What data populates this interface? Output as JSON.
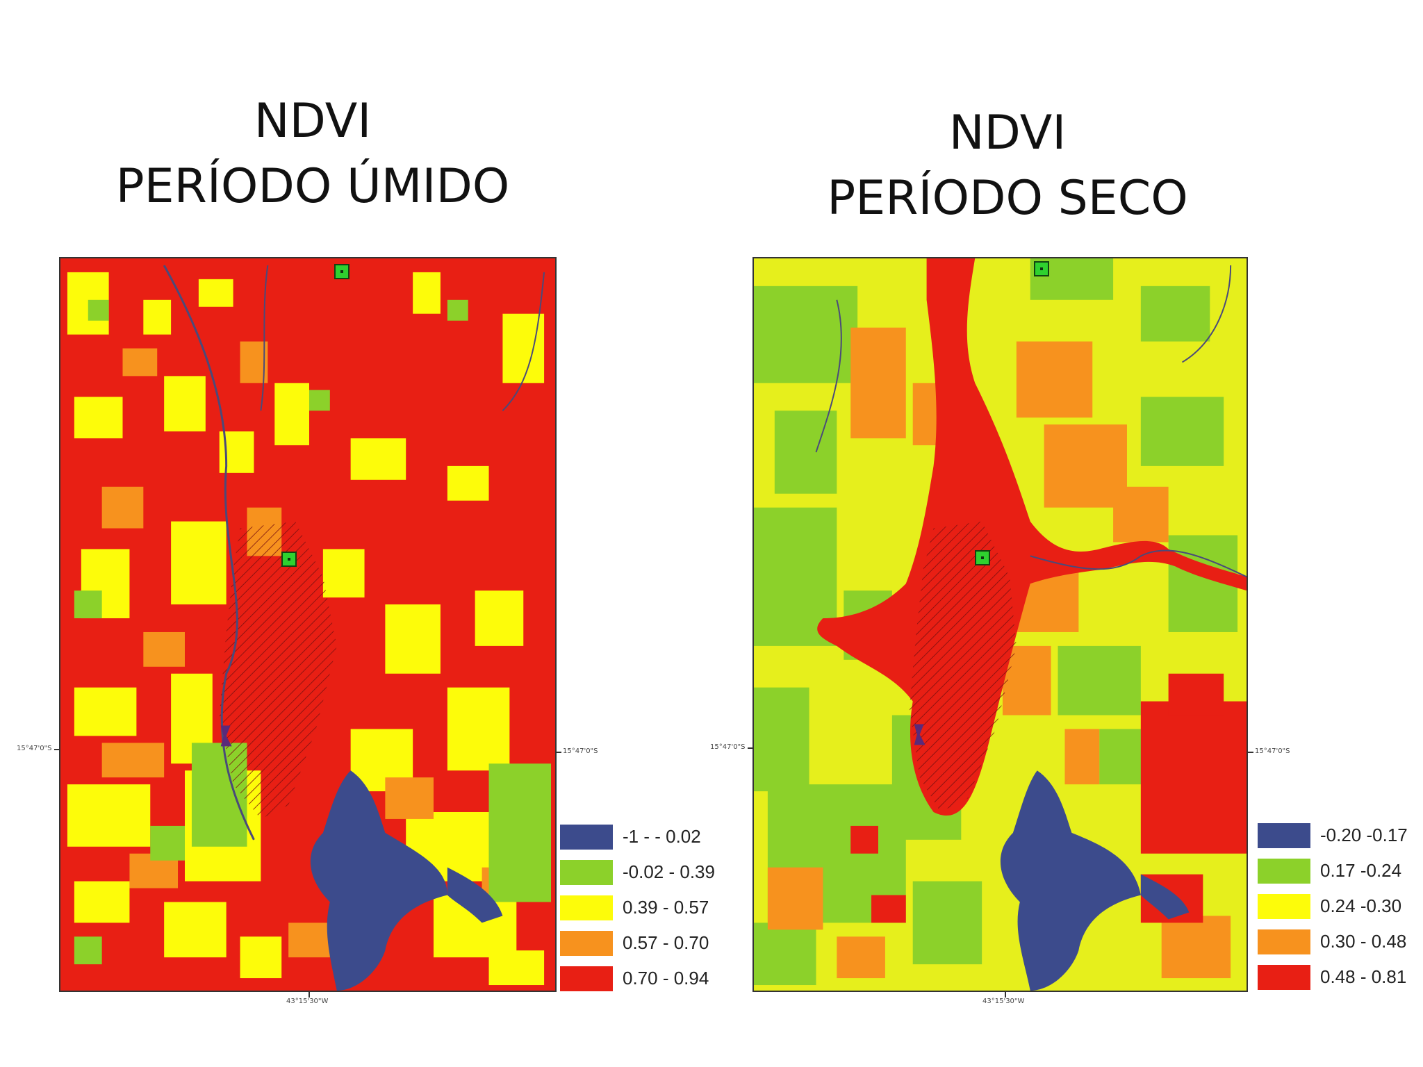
{
  "left_panel": {
    "title_line1": "NDVI",
    "title_line2": "PERÍODO ÚMIDO",
    "lat_label_left": "15°47'0\"S",
    "lat_label_right": "15°47'0\"S",
    "lon_label": "43°15'30\"W",
    "legend": [
      {
        "label": "-1 - - 0.02",
        "color": "#3c4b8c"
      },
      {
        "label": "-0.02 - 0.39",
        "color": "#8cd12a"
      },
      {
        "label": "0.39 - 0.57",
        "color": "#fdfc0a"
      },
      {
        "label": "0.57 - 0.70",
        "color": "#f7921e"
      },
      {
        "label": "0.70 - 0.94",
        "color": "#e81f14"
      }
    ]
  },
  "right_panel": {
    "title_line1": "NDVI",
    "title_line2": "PERÍODO SECO",
    "lat_label_left": "15°47'0\"S",
    "lat_label_right": "15°47'0\"S",
    "lon_label": "43°15'30\"W",
    "legend": [
      {
        "label": "-0.20 -0.17",
        "color": "#3c4b8c"
      },
      {
        "label": "0.17 -0.24",
        "color": "#8cd12a"
      },
      {
        "label": "0.24 -0.30",
        "color": "#fdfc0a"
      },
      {
        "label": "0.30 - 0.48",
        "color": "#f7921e"
      },
      {
        "label": "0.48 - 0.81",
        "color": "#e81f14"
      }
    ]
  },
  "colors": {
    "water": "#3c4b8c",
    "green": "#8cd12a",
    "yellow": "#fdfc0a",
    "orange": "#f7921e",
    "red": "#e81f14",
    "marker": "#2fd12f"
  }
}
